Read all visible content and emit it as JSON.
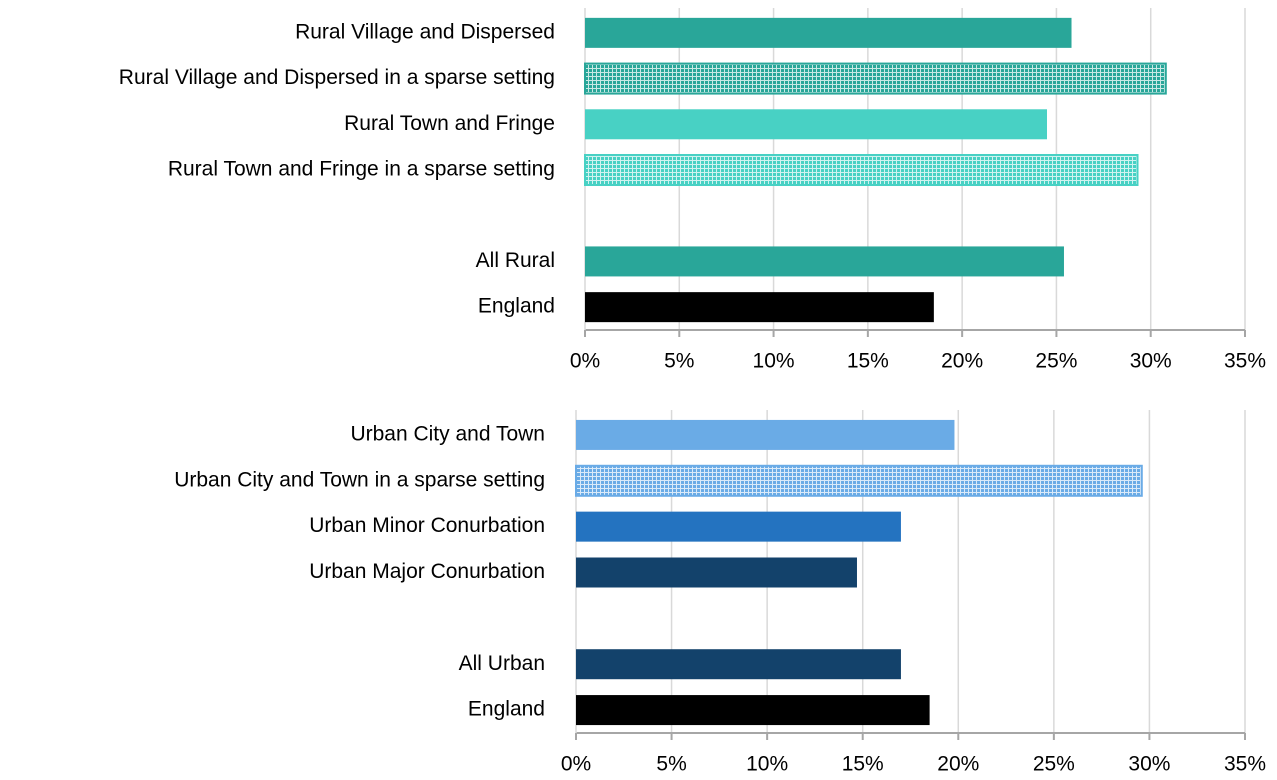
{
  "chart_data": [
    {
      "type": "barh",
      "categories": [
        "Rural Village and Dispersed",
        "Rural Village and Dispersed in a sparse setting",
        "Rural Town and Fringe",
        "Rural Town and Fringe in a sparse setting",
        null,
        "All Rural",
        "England"
      ],
      "values": [
        25.8,
        30.8,
        24.5,
        29.3,
        null,
        25.4,
        18.5
      ],
      "colors": [
        "#29a699",
        "#29a699",
        "#48d1c4",
        "#48d1c4",
        null,
        "#29a699",
        "#000000"
      ],
      "hatched": [
        false,
        true,
        false,
        true,
        null,
        false,
        false
      ],
      "xlim": [
        0,
        35
      ],
      "xticks": [
        {
          "value": 0,
          "label": "0%"
        },
        {
          "value": 5,
          "label": "5%"
        },
        {
          "value": 10,
          "label": "10%"
        },
        {
          "value": 15,
          "label": "15%"
        },
        {
          "value": 20,
          "label": "20%"
        },
        {
          "value": 25,
          "label": "25%"
        },
        {
          "value": 30,
          "label": "30%"
        },
        {
          "value": 35,
          "label": "35%"
        }
      ],
      "grid": true
    },
    {
      "type": "barh",
      "categories": [
        "Urban City and Town",
        "Urban City and Town in a sparse setting",
        "Urban Minor Conurbation",
        "Urban Major Conurbation",
        null,
        "All Urban",
        "England"
      ],
      "values": [
        19.8,
        29.6,
        17.0,
        14.7,
        null,
        17.0,
        18.5
      ],
      "colors": [
        "#6aabe6",
        "#6aabe6",
        "#2473c0",
        "#13426b",
        null,
        "#13426b",
        "#000000"
      ],
      "hatched": [
        false,
        true,
        false,
        false,
        null,
        false,
        false
      ],
      "xlim": [
        0,
        35
      ],
      "xticks": [
        {
          "value": 0,
          "label": "0%"
        },
        {
          "value": 5,
          "label": "5%"
        },
        {
          "value": 10,
          "label": "10%"
        },
        {
          "value": 15,
          "label": "15%"
        },
        {
          "value": 20,
          "label": "20%"
        },
        {
          "value": 25,
          "label": "25%"
        },
        {
          "value": 30,
          "label": "30%"
        },
        {
          "value": 35,
          "label": "35%"
        }
      ],
      "grid": true
    }
  ]
}
